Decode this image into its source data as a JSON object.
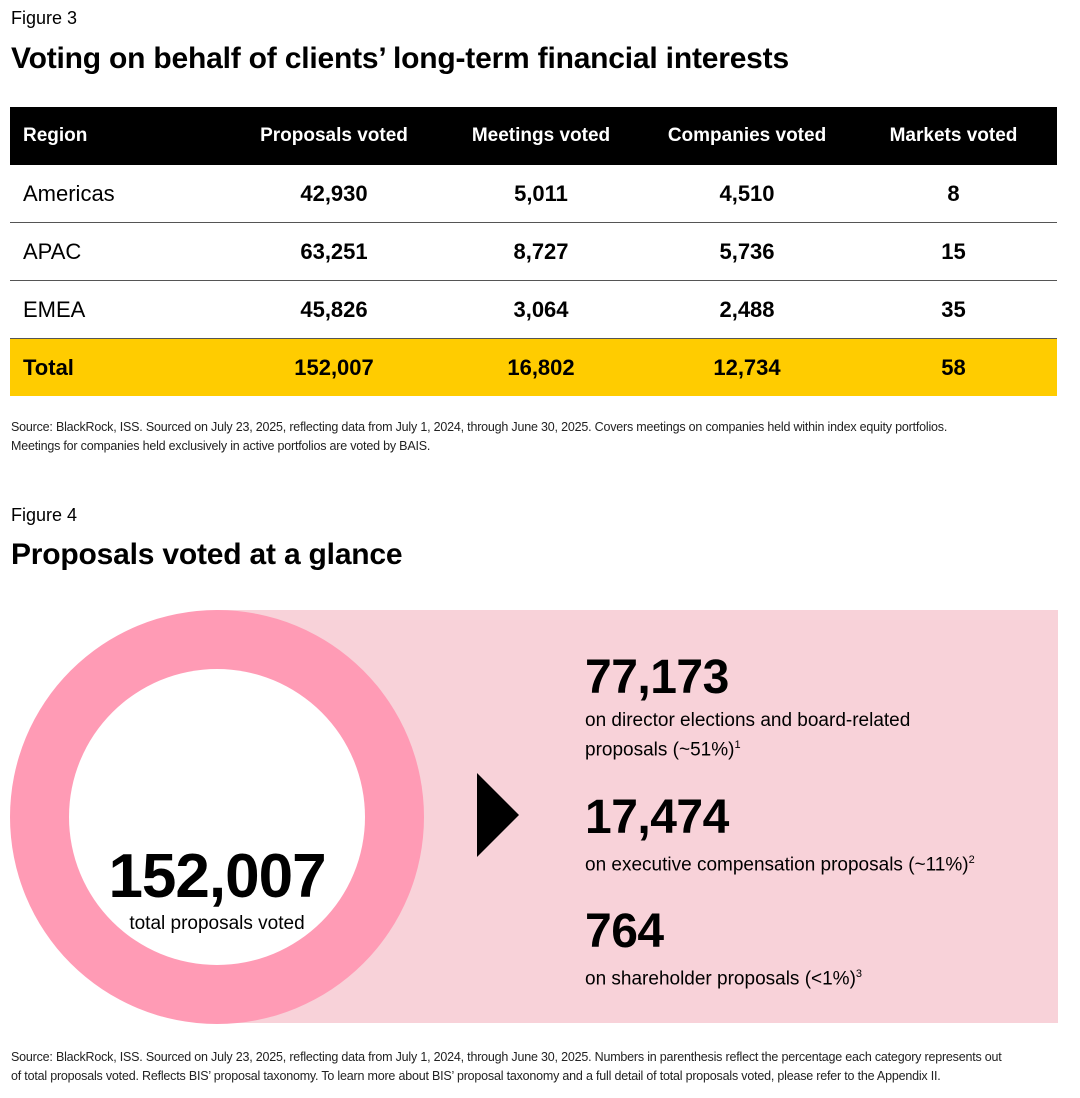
{
  "figure3": {
    "label": "Figure 3",
    "title": "Voting on behalf of clients’ long-term financial interests",
    "headers": [
      "Region",
      "Proposals voted",
      "Meetings voted",
      "Companies voted",
      "Markets voted"
    ],
    "rows": [
      [
        "Americas",
        "42,930",
        "5,011",
        "4,510",
        "8"
      ],
      [
        "APAC",
        "63,251",
        "8,727",
        "5,736",
        "15"
      ],
      [
        "EMEA",
        "45,826",
        "3,064",
        "2,488",
        "35"
      ],
      [
        "Total",
        "152,007",
        "16,802",
        "12,734",
        "58"
      ]
    ],
    "source_line1": "Source: BlackRock, ISS. Sourced on July 23, 2025, reflecting data from July 1, 2024, through June 30, 2025. Covers meetings on companies held within index equity portfolios.",
    "source_line2": "Meetings for companies held exclusively in active portfolios are voted by BAIS."
  },
  "figure4": {
    "label": "Figure 4",
    "title": "Proposals voted at a glance",
    "total_value": "152,007",
    "total_label": "total proposals voted",
    "stats": [
      {
        "value": "77,173",
        "desc_line1": "on director elections and board-related",
        "desc_line2": "proposals (~51%)",
        "footnote": "1"
      },
      {
        "value": "17,474",
        "desc_line1": "on executive compensation proposals (~11%)",
        "desc_line2": "",
        "footnote": "2"
      },
      {
        "value": "764",
        "desc_line1": "on shareholder proposals (<1%)",
        "desc_line2": "",
        "footnote": "3"
      }
    ],
    "source_line1": "Source: BlackRock, ISS. Sourced on July 23, 2025, reflecting data from July 1, 2024, through June 30, 2025. Numbers in parenthesis reflect the percentage each category represents out",
    "source_line2": "of total proposals voted. Reflects BIS’ proposal taxonomy. To learn more about BIS’ proposal taxonomy and a full detail of total proposals voted, please refer to the Appendix II."
  },
  "colors": {
    "ring": "#ff9bb5",
    "panel": "#f8d2d9",
    "total_row": "#ffcc00",
    "header": "#000000"
  }
}
